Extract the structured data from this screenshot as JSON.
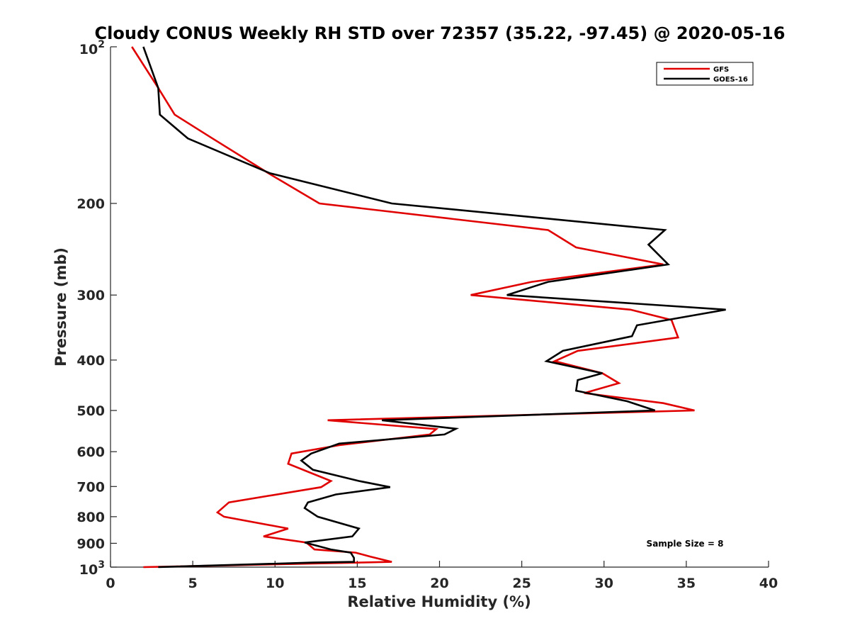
{
  "chart_data": {
    "type": "line",
    "title": "Cloudy CONUS Weekly RH STD over 72357 (35.22, -97.45) @ 2020-05-16",
    "xlabel": "Relative Humidity (%)",
    "ylabel": "Pressure (mb)",
    "xlim": [
      0,
      40
    ],
    "ylim": [
      100,
      1000
    ],
    "y_scale": "log",
    "y_reversed": true,
    "x_ticks": [
      0,
      5,
      10,
      15,
      20,
      25,
      30,
      35,
      40
    ],
    "y_ticks": [
      {
        "value": 200,
        "label": "200"
      },
      {
        "value": 300,
        "label": "300"
      },
      {
        "value": 400,
        "label": "400"
      },
      {
        "value": 500,
        "label": "500"
      },
      {
        "value": 600,
        "label": "600"
      },
      {
        "value": 700,
        "label": "700"
      },
      {
        "value": 800,
        "label": "800"
      },
      {
        "value": 900,
        "label": "900"
      }
    ],
    "y_limit_labels": {
      "top_base": "10",
      "top_exp": "2",
      "bottom_base": "10",
      "bottom_exp": "3"
    },
    "grid": false,
    "legend_position": "top-right",
    "annotation": "Sample Size = 8",
    "series": [
      {
        "name": "GFS",
        "color": "#e00000",
        "points": [
          [
            1.3,
            100
          ],
          [
            2.9,
            120
          ],
          [
            3.9,
            135
          ],
          [
            6.2,
            150
          ],
          [
            9.6,
            175
          ],
          [
            12.7,
            200
          ],
          [
            26.6,
            225
          ],
          [
            28.3,
            243
          ],
          [
            33.6,
            262
          ],
          [
            25.6,
            283
          ],
          [
            21.9,
            300
          ],
          [
            31.6,
            320
          ],
          [
            34.1,
            335
          ],
          [
            34.5,
            362
          ],
          [
            28.4,
            384
          ],
          [
            27.0,
            402
          ],
          [
            29.9,
            424
          ],
          [
            30.9,
            443
          ],
          [
            28.8,
            463
          ],
          [
            33.6,
            484
          ],
          [
            35.5,
            500
          ],
          [
            13.2,
            522
          ],
          [
            19.8,
            543
          ],
          [
            19.4,
            556
          ],
          [
            13.9,
            583
          ],
          [
            11.0,
            605
          ],
          [
            10.8,
            633
          ],
          [
            13.4,
            683
          ],
          [
            12.8,
            702
          ],
          [
            7.2,
            751
          ],
          [
            6.5,
            785
          ],
          [
            6.9,
            800
          ],
          [
            10.8,
            843
          ],
          [
            9.3,
            873
          ],
          [
            11.9,
            897
          ],
          [
            12.4,
            925
          ],
          [
            14.9,
            938
          ],
          [
            15.8,
            955
          ],
          [
            17.1,
            977
          ],
          [
            2.0,
            1000
          ]
        ]
      },
      {
        "name": "GOES-16",
        "color": "#000000",
        "points": [
          [
            2.0,
            100
          ],
          [
            2.9,
            120
          ],
          [
            3.0,
            135
          ],
          [
            4.7,
            150
          ],
          [
            9.7,
            175
          ],
          [
            17.1,
            200
          ],
          [
            33.7,
            225
          ],
          [
            32.7,
            240
          ],
          [
            33.9,
            262
          ],
          [
            26.6,
            283
          ],
          [
            24.1,
            300
          ],
          [
            37.4,
            320
          ],
          [
            32.0,
            343
          ],
          [
            31.7,
            360
          ],
          [
            27.5,
            384
          ],
          [
            26.5,
            402
          ],
          [
            29.9,
            424
          ],
          [
            28.4,
            437
          ],
          [
            28.3,
            458
          ],
          [
            31.4,
            480
          ],
          [
            33.1,
            500
          ],
          [
            16.5,
            522
          ],
          [
            21.0,
            542
          ],
          [
            20.3,
            556
          ],
          [
            13.9,
            579
          ],
          [
            12.2,
            605
          ],
          [
            11.6,
            624
          ],
          [
            12.3,
            650
          ],
          [
            15.1,
            683
          ],
          [
            17.0,
            702
          ],
          [
            13.7,
            725
          ],
          [
            12.0,
            751
          ],
          [
            11.8,
            770
          ],
          [
            12.6,
            800
          ],
          [
            15.1,
            843
          ],
          [
            14.7,
            873
          ],
          [
            11.8,
            897
          ],
          [
            13.4,
            925
          ],
          [
            14.6,
            938
          ],
          [
            14.8,
            960
          ],
          [
            14.8,
            977
          ],
          [
            12.3,
            980
          ],
          [
            2.9,
            1000
          ]
        ]
      }
    ]
  }
}
